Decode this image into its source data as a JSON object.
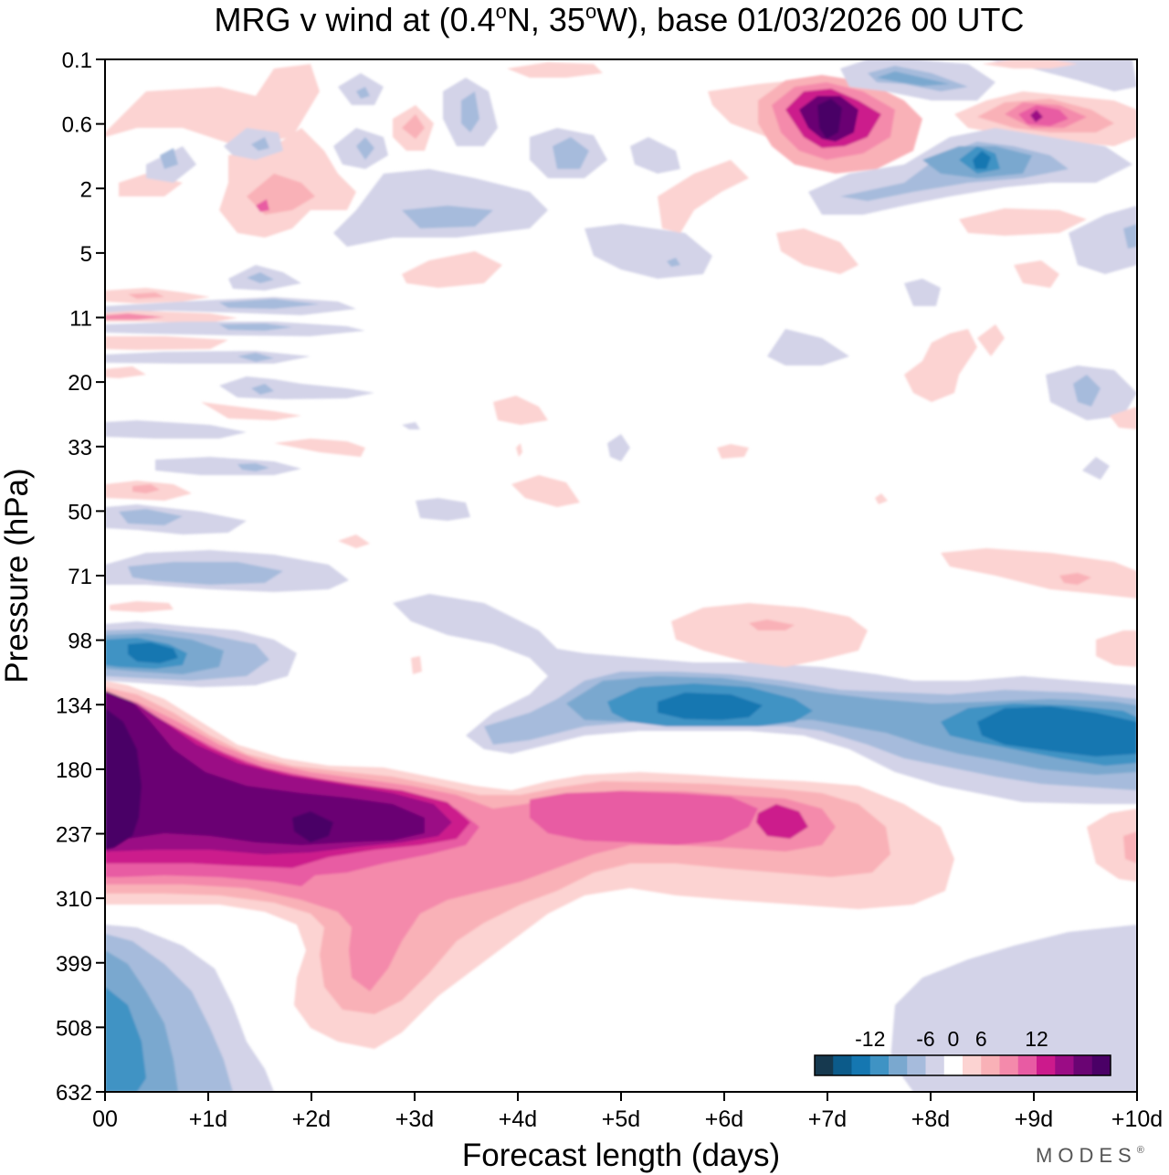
{
  "chart_data": {
    "type": "heatmap",
    "title_parts": {
      "prefix": "MRG v wind at (0.4",
      "deg1": "o",
      "mid": "N, 35",
      "deg2": "o",
      "suffix": "W),  base 01/03/2026  00 UTC"
    },
    "xlabel": "Forecast length (days)",
    "ylabel": "Pressure (hPa)",
    "x_ticks": [
      "00",
      "+1d",
      "+2d",
      "+3d",
      "+4d",
      "+5d",
      "+6d",
      "+7d",
      "+8d",
      "+9d",
      "+10d"
    ],
    "x_range_days": [
      0,
      10
    ],
    "y_ticks": [
      "0.1",
      "0.6",
      "2",
      "5",
      "11",
      "20",
      "33",
      "50",
      "71",
      "98",
      "134",
      "180",
      "237",
      "310",
      "399",
      "508",
      "632"
    ],
    "y_range_hpa": [
      0.1,
      632
    ],
    "colorbar": {
      "tick_labels": [
        "-12",
        "-6",
        "0",
        "6",
        "12"
      ],
      "levels": [
        -16,
        -14,
        -12,
        -10,
        -8,
        -6,
        -4,
        -2,
        2,
        4,
        6,
        8,
        10,
        12,
        14,
        16
      ],
      "colors": [
        "#16394f",
        "#0c5b8a",
        "#1577b1",
        "#3f93c4",
        "#7aa8cf",
        "#a6bbdc",
        "#d3d3e8",
        "#ffffff",
        "#fcd3d2",
        "#f9b1b7",
        "#f48aab",
        "#e85ba3",
        "#cc1a8c",
        "#9b0c85",
        "#6a0473",
        "#4a0066"
      ]
    },
    "features": [
      {
        "name": "positive jet core near 237 hPa",
        "sign": "positive",
        "peak_value": 16,
        "day_range": [
          0,
          4.5
        ],
        "pressure_hpa": [
          150,
          310
        ]
      },
      {
        "name": "positive tail to +9d near 237 hPa",
        "sign": "positive",
        "peak_value": 10,
        "day_range": [
          4.5,
          8.5
        ],
        "pressure_hpa": [
          180,
          300
        ]
      },
      {
        "name": "negative band near 134 hPa",
        "sign": "negative",
        "peak_value": -14,
        "day_range": [
          3.5,
          10
        ],
        "pressure_hpa": [
          110,
          180
        ]
      },
      {
        "name": "negative blob near 98 hPa",
        "sign": "negative",
        "peak_value": -12,
        "day_range": [
          0,
          1.5
        ],
        "pressure_hpa": [
          85,
          120
        ]
      },
      {
        "name": "negative lower troposphere at day 0",
        "sign": "negative",
        "peak_value": -10,
        "day_range": [
          0,
          1.5
        ],
        "pressure_hpa": [
          360,
          632
        ]
      },
      {
        "name": "positive upper stratosphere near +7d",
        "sign": "positive",
        "peak_value": 16,
        "day_range": [
          6,
          8
        ],
        "pressure_hpa": [
          0.2,
          1.5
        ]
      },
      {
        "name": "positive upper stratosphere near +9d",
        "sign": "positive",
        "peak_value": 12,
        "day_range": [
          8,
          10
        ],
        "pressure_hpa": [
          0.3,
          1.2
        ]
      },
      {
        "name": "negative upper stratosphere near +8.5d",
        "sign": "negative",
        "peak_value": -12,
        "day_range": [
          7,
          9.5
        ],
        "pressure_hpa": [
          0.8,
          3
        ]
      }
    ]
  },
  "branding": {
    "logo_text": "MODES",
    "logo_mark": "®"
  }
}
